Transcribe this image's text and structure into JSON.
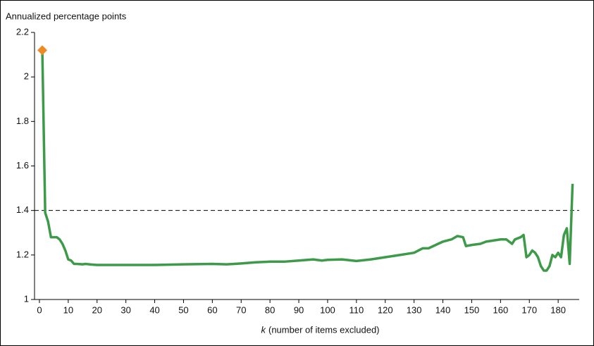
{
  "chart_data": {
    "type": "line",
    "y_axis_title": "Annualized percentage points",
    "x_axis_title_k": "k",
    "x_axis_title": "(number of items excluded)",
    "xlim": [
      -1.7,
      187.3
    ],
    "ylim": [
      1,
      2.2
    ],
    "xticks": [
      0,
      10,
      20,
      30,
      40,
      50,
      60,
      70,
      80,
      90,
      100,
      110,
      120,
      130,
      140,
      150,
      160,
      170,
      180
    ],
    "yticks": [
      1,
      1.2,
      1.4,
      1.6,
      1.8,
      2,
      2.2
    ],
    "reference_line": 1.4,
    "series": [
      {
        "color": "#3c9a48",
        "x": [
          1,
          2,
          3,
          4,
          5,
          6,
          7,
          8,
          9,
          10,
          11,
          12,
          13,
          15,
          16,
          18,
          20,
          30,
          40,
          50,
          60,
          65,
          70,
          75,
          80,
          85,
          90,
          95,
          98,
          100,
          105,
          110,
          115,
          120,
          125,
          130,
          133,
          135,
          140,
          143,
          145,
          147,
          148,
          150,
          153,
          155,
          160,
          162,
          164,
          165,
          167,
          168,
          169,
          170,
          171,
          172,
          173,
          174,
          175,
          176,
          177,
          178,
          179,
          180,
          181,
          182,
          183,
          184,
          185
        ],
        "values": [
          2.12,
          1.39,
          1.35,
          1.28,
          1.28,
          1.28,
          1.27,
          1.25,
          1.22,
          1.18,
          1.175,
          1.16,
          1.16,
          1.158,
          1.16,
          1.157,
          1.155,
          1.155,
          1.155,
          1.158,
          1.16,
          1.158,
          1.162,
          1.167,
          1.17,
          1.17,
          1.175,
          1.18,
          1.175,
          1.178,
          1.18,
          1.173,
          1.18,
          1.19,
          1.2,
          1.21,
          1.23,
          1.23,
          1.26,
          1.27,
          1.285,
          1.28,
          1.24,
          1.245,
          1.25,
          1.26,
          1.27,
          1.27,
          1.25,
          1.27,
          1.28,
          1.29,
          1.19,
          1.2,
          1.22,
          1.21,
          1.19,
          1.15,
          1.13,
          1.13,
          1.15,
          1.2,
          1.19,
          1.21,
          1.19,
          1.29,
          1.32,
          1.16,
          1.52
        ]
      },
      {
        "color": "#f08a24",
        "marker": "diamond",
        "x": [
          1
        ],
        "values": [
          2.12
        ]
      }
    ]
  }
}
